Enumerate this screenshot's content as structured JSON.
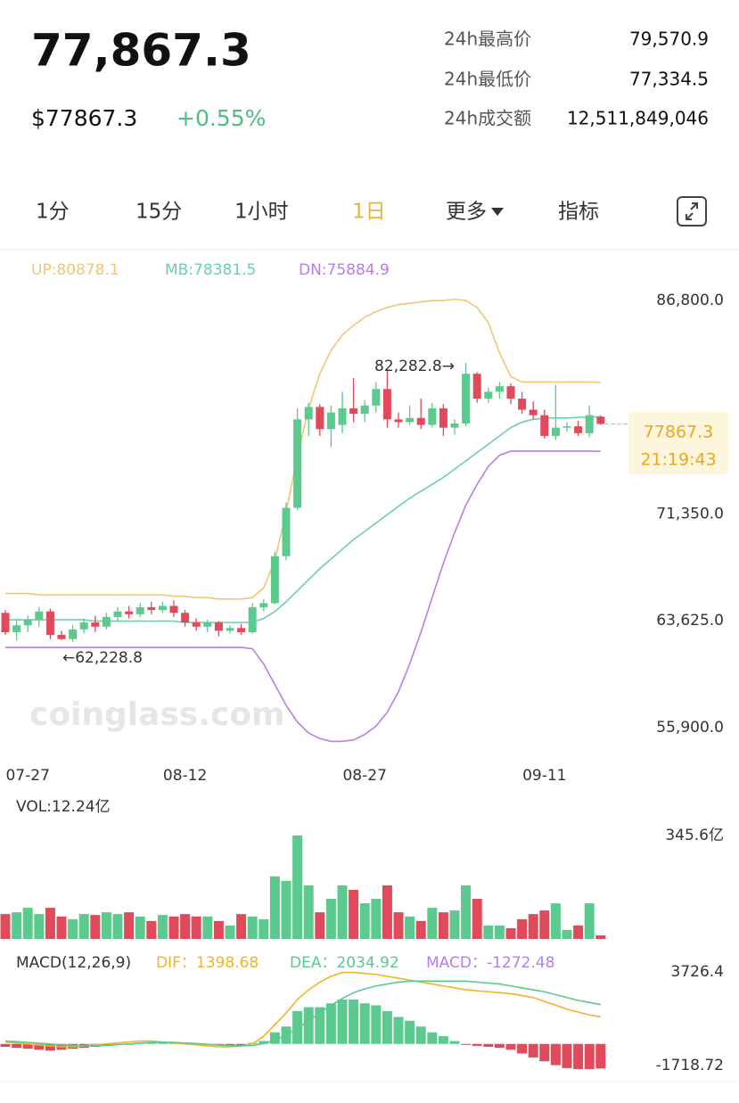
{
  "header": {
    "price": "77,867.3",
    "usd_price": "$77867.3",
    "change": "+0.55%",
    "stats": [
      {
        "label": "24h最高价",
        "value": "79,570.9"
      },
      {
        "label": "24h最低价",
        "value": "77,334.5"
      },
      {
        "label": "24h成交额",
        "value": "12,511,849,046"
      }
    ]
  },
  "tabs": {
    "items": [
      "1分",
      "15分",
      "1小时",
      "1日",
      "更多",
      "指标"
    ],
    "active": 3
  },
  "chart_data": [
    {
      "type": "candlestick",
      "watermark": "coinglass.com",
      "annotations": [
        "82,282.8→",
        "←62,228.8"
      ],
      "countdown": "21:19:43",
      "up_color": "#5cc98f",
      "down_color": "#e04a5a",
      "categories": [
        null,
        null,
        "07-27",
        null,
        null,
        null,
        null,
        null,
        null,
        null,
        null,
        null,
        null,
        null,
        null,
        null,
        "08-12",
        null,
        null,
        null,
        null,
        null,
        null,
        null,
        null,
        null,
        null,
        null,
        null,
        null,
        null,
        null,
        "08-27",
        null,
        null,
        null,
        null,
        null,
        null,
        null,
        null,
        null,
        null,
        null,
        null,
        null,
        null,
        null,
        "09-11",
        null,
        null,
        null,
        null,
        null
      ],
      "open": [
        64200,
        62800,
        63300,
        63700,
        64300,
        62600,
        62300,
        63000,
        63500,
        63200,
        63900,
        64300,
        64100,
        64600,
        64400,
        64700,
        64200,
        63500,
        63200,
        63500,
        62900,
        63100,
        62800,
        64600,
        64900,
        68300,
        71800,
        78200,
        79100,
        77500,
        77800,
        79000,
        78600,
        79200,
        80400,
        78200,
        78000,
        78300,
        77800,
        79000,
        77600,
        77900,
        81500,
        79700,
        80200,
        80600,
        79700,
        78900,
        78500,
        77000,
        77600,
        77700,
        77200,
        78400
      ],
      "high": [
        64400,
        63700,
        64000,
        64600,
        64500,
        62900,
        63300,
        63800,
        64000,
        64200,
        64600,
        64700,
        64900,
        65000,
        65000,
        65100,
        64400,
        63800,
        63700,
        63600,
        63300,
        63400,
        64900,
        65200,
        68600,
        72200,
        79000,
        79400,
        79300,
        79200,
        80200,
        81200,
        79600,
        80900,
        81700,
        78700,
        79200,
        79700,
        79400,
        79300,
        78200,
        82282.8,
        81600,
        80500,
        80900,
        80800,
        80200,
        79500,
        78900,
        80700,
        78000,
        78100,
        79200,
        78500
      ],
      "low": [
        62600,
        62200,
        62800,
        63200,
        62300,
        62228.8,
        62100,
        62700,
        62800,
        63000,
        63600,
        63800,
        63900,
        64100,
        64200,
        63900,
        63200,
        62900,
        62800,
        62500,
        62700,
        62600,
        62700,
        64300,
        64800,
        68000,
        71600,
        77000,
        77000,
        76200,
        77200,
        78000,
        78000,
        78700,
        77600,
        77600,
        77800,
        77500,
        77600,
        77000,
        77100,
        77700,
        79400,
        79400,
        79700,
        79300,
        78600,
        78200,
        76800,
        76700,
        77300,
        77000,
        76900,
        77800
      ],
      "close": [
        62800,
        63300,
        63700,
        64300,
        62600,
        62300,
        63000,
        63500,
        63200,
        63900,
        64300,
        64100,
        64600,
        64400,
        64700,
        64200,
        63500,
        63200,
        63500,
        62900,
        63100,
        62800,
        64600,
        64900,
        68300,
        71800,
        78200,
        79100,
        77500,
        78700,
        79000,
        78600,
        79200,
        80400,
        78200,
        78000,
        78300,
        77800,
        79000,
        77600,
        77900,
        81500,
        79700,
        80200,
        80600,
        79700,
        78900,
        78500,
        77000,
        77600,
        77700,
        77200,
        78500,
        77867.3
      ],
      "series": [
        {
          "name": "UP:80878.1",
          "color": "#f0c674",
          "values": [
            65600,
            65600,
            65600,
            65500,
            65500,
            65500,
            65500,
            65500,
            65500,
            65500,
            65500,
            65500,
            65500,
            65500,
            65500,
            65400,
            65400,
            65300,
            65300,
            65200,
            65200,
            65200,
            65300,
            66000,
            68000,
            71500,
            75500,
            79000,
            81500,
            83200,
            84300,
            85000,
            85600,
            86000,
            86300,
            86500,
            86600,
            86700,
            86800,
            86800,
            86900,
            86800,
            86300,
            85200,
            83000,
            81300,
            80900,
            80900,
            80900,
            80900,
            80900,
            80900,
            80900,
            80878.1
          ]
        },
        {
          "name": "MB:78381.5",
          "color": "#6dd0a8",
          "values": [
            63700,
            63700,
            63700,
            63700,
            63700,
            63700,
            63700,
            63700,
            63600,
            63600,
            63600,
            63600,
            63600,
            63600,
            63600,
            63600,
            63500,
            63500,
            63500,
            63500,
            63500,
            63500,
            63500,
            63800,
            64300,
            65000,
            65800,
            66600,
            67400,
            68100,
            68800,
            69500,
            70100,
            70700,
            71300,
            71900,
            72500,
            73000,
            73500,
            74000,
            74600,
            75200,
            75800,
            76400,
            77000,
            77600,
            78000,
            78200,
            78300,
            78300,
            78300,
            78350,
            78370,
            78381.5
          ]
        },
        {
          "name": "DN:75884.9",
          "color": "#b77ee8",
          "values": [
            61700,
            61700,
            61700,
            61700,
            61700,
            61700,
            61700,
            61700,
            61700,
            61700,
            61700,
            61700,
            61700,
            61700,
            61700,
            61700,
            61700,
            61700,
            61700,
            61700,
            61700,
            61700,
            61600,
            60500,
            59000,
            57500,
            56300,
            55500,
            55100,
            54900,
            54900,
            55000,
            55400,
            56000,
            57000,
            58500,
            60500,
            62800,
            65300,
            67800,
            70000,
            72000,
            73500,
            74800,
            75600,
            75900,
            75900,
            75900,
            75900,
            75900,
            75900,
            75900,
            75900,
            75884.9
          ]
        }
      ],
      "ylim": [
        53700,
        87900
      ],
      "yticks": [
        {
          "value": 86800,
          "label": "86,800.0"
        },
        {
          "value": 71350,
          "label": "71,350.0"
        },
        {
          "value": 63625,
          "label": "63,625.0"
        },
        {
          "value": 55900,
          "label": "55,900.0"
        }
      ]
    },
    {
      "type": "bar",
      "title": "VOL:12.24亿",
      "values": [
        83,
        89,
        104,
        83,
        104,
        75,
        66,
        83,
        80,
        89,
        83,
        89,
        75,
        60,
        80,
        75,
        83,
        75,
        75,
        60,
        45,
        83,
        75,
        66,
        209,
        194,
        345.6,
        179,
        89,
        134,
        179,
        164,
        119,
        134,
        179,
        89,
        75,
        60,
        104,
        89,
        95,
        179,
        134,
        45,
        45,
        36,
        66,
        83,
        95,
        119,
        30,
        45,
        119,
        12.24
      ],
      "ylim": [
        0,
        345.6
      ],
      "yticks": [
        {
          "value": 345.6,
          "label": "345.6亿"
        }
      ]
    },
    {
      "type": "macd",
      "title": "MACD(12,26,9)",
      "up_color": "#5cc98f",
      "down_color": "#e04a5a",
      "series": [
        {
          "name": "DIF：1398.68",
          "color": "#f0b429",
          "values": [
            100,
            50,
            0,
            -50,
            -100,
            -150,
            -150,
            -100,
            -50,
            0,
            50,
            100,
            150,
            150,
            100,
            50,
            0,
            -50,
            -100,
            -150,
            -150,
            -100,
            0,
            400,
            1000,
            1600,
            2300,
            2800,
            3200,
            3500,
            3700,
            3700,
            3650,
            3600,
            3500,
            3400,
            3300,
            3200,
            3100,
            3000,
            2900,
            2800,
            2750,
            2700,
            2650,
            2600,
            2500,
            2400,
            2200,
            2000,
            1800,
            1650,
            1500,
            1398.68
          ]
        },
        {
          "name": "DEA：2034.92",
          "color": "#5cc98f",
          "values": [
            150,
            120,
            80,
            40,
            0,
            -50,
            -80,
            -100,
            -100,
            -80,
            -40,
            0,
            50,
            80,
            90,
            80,
            50,
            20,
            -20,
            -60,
            -90,
            -100,
            -80,
            20,
            200,
            450,
            800,
            1200,
            1600,
            2000,
            2350,
            2650,
            2850,
            3000,
            3100,
            3200,
            3250,
            3250,
            3250,
            3250,
            3250,
            3250,
            3200,
            3150,
            3100,
            3000,
            2900,
            2800,
            2700,
            2550,
            2400,
            2250,
            2150,
            2034.92
          ]
        },
        {
          "name": "MACD：-1272.48",
          "color": "#b77ee8",
          "values": [
            -150,
            -200,
            -250,
            -300,
            -350,
            -300,
            -250,
            -200,
            -150,
            -100,
            -50,
            0,
            50,
            80,
            100,
            80,
            50,
            20,
            -30,
            -60,
            -100,
            -80,
            50,
            150,
            600,
            900,
            1700,
            1900,
            1900,
            2100,
            2300,
            2300,
            2100,
            2000,
            1700,
            1400,
            1200,
            900,
            600,
            400,
            150,
            -50,
            -100,
            -150,
            -200,
            -300,
            -500,
            -700,
            -900,
            -1100,
            -1250,
            -1300,
            -1300,
            -1272.48
          ]
        }
      ],
      "ylim": [
        -1718.72,
        3726.4
      ],
      "yticks": [
        3726.4,
        -1718.72
      ]
    }
  ]
}
